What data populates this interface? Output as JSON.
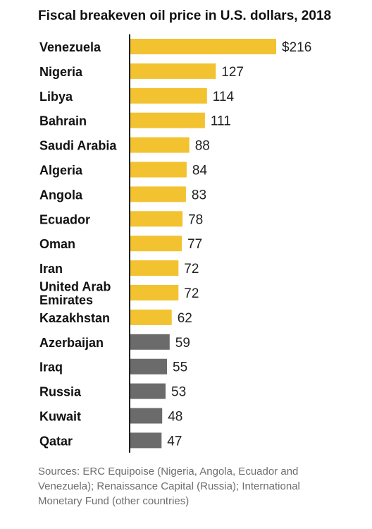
{
  "title": "Fiscal breakeven oil price in U.S. dollars, 2018",
  "source": "Sources: ERC Equipoise (Nigeria, Angola, Ecuador and Venezuela); Renaissance Capital (Russia); International Monetary Fund (other countries)",
  "colors": {
    "highlight": "#f2c230",
    "other": "#6b6b6b",
    "axis": "#222222"
  },
  "chart_data": {
    "type": "bar",
    "orientation": "horizontal",
    "title": "Fiscal breakeven oil price in U.S. dollars, 2018",
    "xlabel": "",
    "ylabel": "",
    "grid": false,
    "legend": "none",
    "xlim": [
      0,
      216
    ],
    "categories": [
      [
        "Venezuela"
      ],
      [
        "Nigeria"
      ],
      [
        "Libya"
      ],
      [
        "Bahrain"
      ],
      [
        "Saudi Arabia"
      ],
      [
        "Algeria"
      ],
      [
        "Angola"
      ],
      [
        "Ecuador"
      ],
      [
        "Oman"
      ],
      [
        "Iran"
      ],
      [
        "United Arab",
        "Emirates"
      ],
      [
        "Kazakhstan"
      ],
      [
        "Azerbaijan"
      ],
      [
        "Iraq"
      ],
      [
        "Russia"
      ],
      [
        "Kuwait"
      ],
      [
        "Qatar"
      ]
    ],
    "values": [
      216,
      127,
      114,
      111,
      88,
      84,
      83,
      78,
      77,
      72,
      72,
      62,
      59,
      55,
      53,
      48,
      47
    ],
    "value_labels": [
      "$216",
      "127",
      "114",
      "111",
      "88",
      "84",
      "83",
      "78",
      "77",
      "72",
      "72",
      "62",
      "59",
      "55",
      "53",
      "48",
      "47"
    ],
    "highlighted": [
      true,
      true,
      true,
      true,
      true,
      true,
      true,
      true,
      true,
      true,
      true,
      true,
      false,
      false,
      false,
      false,
      false
    ]
  }
}
